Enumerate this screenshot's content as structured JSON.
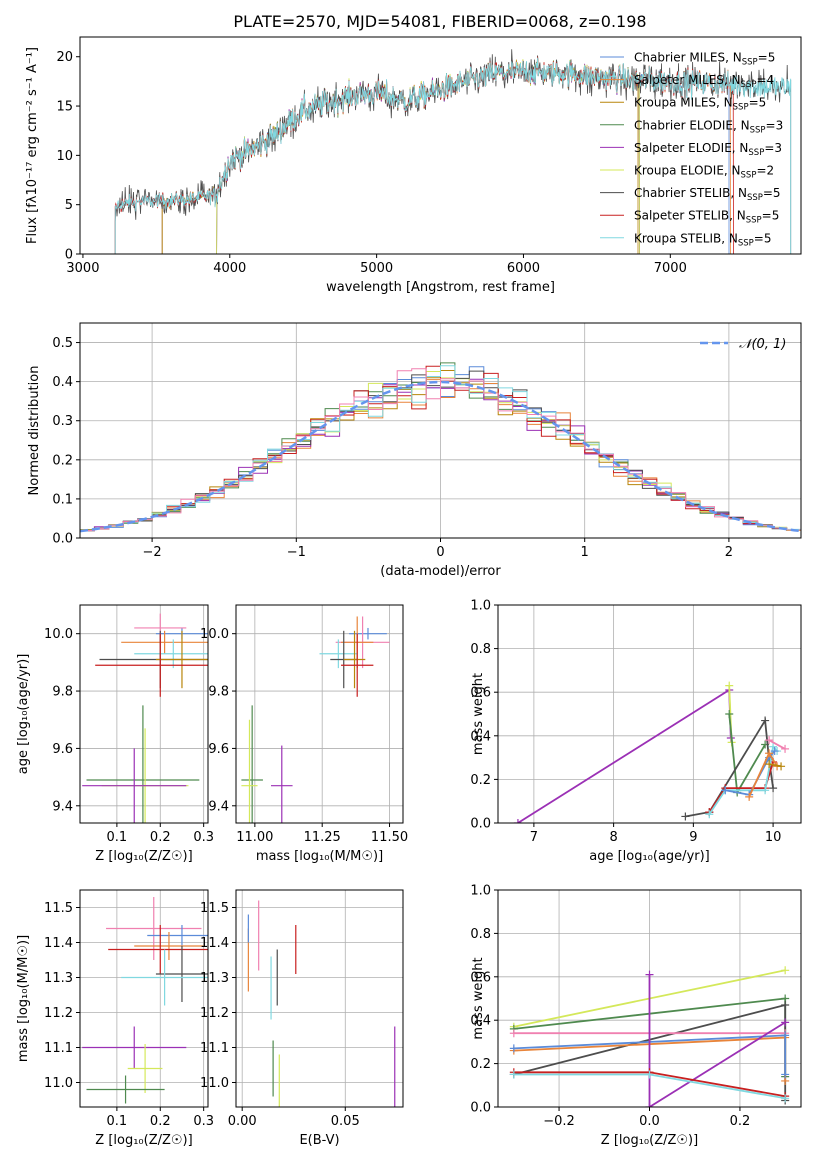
{
  "suptitle": "PLATE=2570, MJD=54081, FIBERID=0068, z=0.198",
  "colors": {
    "Chabrier MILES": "#5b8bd9",
    "Salpeter MILES": "#e8843a",
    "Kroupa MILES": "#b8860b",
    "Chabrier ELODIE": "#4f8a4f",
    "Salpeter ELODIE": "#9b30b5",
    "Kroupa ELODIE": "#d4e85a",
    "Chabrier STELIB": "#4d4d4d",
    "Salpeter STELIB": "#c82020",
    "Kroupa STELIB": "#80d8e0",
    "MILES pink": "#f080b0",
    "gaussian": "#6495ed"
  },
  "chart_data": [
    {
      "id": "spectrum",
      "type": "line",
      "xlabel": "wavelength [Angstrom, rest frame]",
      "ylabel": "Flux [f$_\\lambda$10$^{-17}$ erg cm$^{-2}$ s$^{-1}$ A$^{-1}$]",
      "ylabel_display": "Flux [fλ10⁻¹⁷ erg cm⁻² s⁻¹ A⁻¹]",
      "xlim": [
        2980,
        7890
      ],
      "ylim": [
        0,
        22
      ],
      "xticks": [
        3000,
        4000,
        5000,
        6000,
        7000
      ],
      "yticks": [
        0,
        5,
        10,
        15,
        20
      ],
      "grid": false,
      "legend_position": "upper right",
      "legend": [
        {
          "name": "Chabrier MILES",
          "nssp": "5"
        },
        {
          "name": "Salpeter MILES",
          "nssp": "4"
        },
        {
          "name": "Kroupa MILES",
          "nssp": "5"
        },
        {
          "name": "Chabrier ELODIE",
          "nssp": "3"
        },
        {
          "name": "Salpeter ELODIE",
          "nssp": "3"
        },
        {
          "name": "Kroupa ELODIE",
          "nssp": "2"
        },
        {
          "name": "Chabrier STELIB",
          "nssp": "5"
        },
        {
          "name": "Salpeter STELIB",
          "nssp": "5"
        },
        {
          "name": "Kroupa STELIB",
          "nssp": "5"
        }
      ],
      "legend_suffix": ", N",
      "legend_sub": "SSP",
      "continuum": [
        [
          3220,
          4.8
        ],
        [
          3300,
          5.2
        ],
        [
          3500,
          5.4
        ],
        [
          3700,
          5.5
        ],
        [
          3900,
          6.0
        ],
        [
          4000,
          9.5
        ],
        [
          4200,
          11.0
        ],
        [
          4300,
          12.0
        ],
        [
          4500,
          14.5
        ],
        [
          4800,
          16.0
        ],
        [
          5000,
          16.3
        ],
        [
          5200,
          15.5
        ],
        [
          5500,
          17.0
        ],
        [
          5800,
          18.3
        ],
        [
          6000,
          18.5
        ],
        [
          6300,
          18.3
        ],
        [
          6600,
          17.8
        ],
        [
          7000,
          17.5
        ],
        [
          7400,
          17.2
        ],
        [
          7820,
          16.8
        ]
      ],
      "coverage": [
        {
          "series": "Chabrier MILES",
          "start": 3540,
          "end": 7400
        },
        {
          "series": "Salpeter MILES",
          "start": 3540,
          "end": 7410
        },
        {
          "series": "Kroupa MILES",
          "start": 3540,
          "end": 6780
        },
        {
          "series": "Chabrier ELODIE",
          "start": 3910,
          "end": 6790
        },
        {
          "series": "Salpeter ELODIE",
          "start": 3910,
          "end": 6790
        },
        {
          "series": "Kroupa ELODIE",
          "start": 3910,
          "end": 6790
        },
        {
          "series": "Chabrier STELIB",
          "start": 3220,
          "end": 7820
        },
        {
          "series": "Salpeter STELIB",
          "start": 3220,
          "end": 7430
        },
        {
          "series": "Kroupa STELIB",
          "start": 3220,
          "end": 7820
        }
      ]
    },
    {
      "id": "residuals",
      "type": "step-histogram",
      "xlabel": "(data-model)/error",
      "ylabel": "Normed distribution",
      "xlim": [
        -2.5,
        2.5
      ],
      "ylim": [
        0,
        0.55
      ],
      "xticks": [
        -2,
        -1,
        0,
        1,
        2
      ],
      "yticks": [
        0.0,
        0.1,
        0.2,
        0.3,
        0.4,
        0.5
      ],
      "grid": true,
      "bin_width": 0.1,
      "gaussian": {
        "label": "𝒩(0, 1)",
        "mean": 0,
        "sigma": 1
      },
      "legend_position": "upper right"
    },
    {
      "id": "age-vs-Z",
      "type": "errorbar",
      "xlabel": "Z [log₁₀(Z/Z☉)]",
      "ylabel": "age  [log₁₀(age/yr)]",
      "xlim": [
        0.015,
        0.31
      ],
      "ylim": [
        9.34,
        10.1
      ],
      "xticks": [
        0.1,
        0.2,
        0.3
      ],
      "yticks": [
        9.4,
        9.6,
        9.8,
        10.0
      ],
      "grid": true,
      "points": [
        {
          "series": "Chabrier MILES",
          "x": 0.25,
          "xerr": 0.06,
          "y": 10.0,
          "yerr": 0.02
        },
        {
          "series": "MILES pink",
          "x": 0.2,
          "xerr": 0.06,
          "y": 10.02,
          "yerr": 0.05
        },
        {
          "series": "Salpeter MILES",
          "x": 0.21,
          "xerr": 0.1,
          "y": 9.97,
          "yerr": 0.04
        },
        {
          "series": "Kroupa STELIB",
          "x": 0.23,
          "xerr": 0.09,
          "y": 9.93,
          "yerr": 0.05
        },
        {
          "series": "Chabrier STELIB",
          "x": 0.2,
          "xerr": 0.14,
          "y": 9.91,
          "yerr": 0.1
        },
        {
          "series": "Kroupa MILES",
          "x": 0.25,
          "xerr": 0.06,
          "y": 9.91,
          "yerr": 0.1
        },
        {
          "series": "Salpeter STELIB",
          "x": 0.2,
          "xerr": 0.15,
          "y": 9.89,
          "yerr": 0.11
        },
        {
          "series": "Chabrier ELODIE",
          "x": 0.16,
          "xerr": 0.13,
          "y": 9.49,
          "yerr": 0.26
        },
        {
          "series": "Kroupa ELODIE",
          "x": 0.165,
          "xerr": 0.1,
          "y": 9.47,
          "yerr": 0.2
        },
        {
          "series": "Salpeter ELODIE",
          "x": 0.14,
          "xerr": 0.12,
          "y": 9.47,
          "yerr": 0.13
        }
      ]
    },
    {
      "id": "age-vs-mass",
      "type": "errorbar",
      "xlabel": "mass [log₁₀(M/M☉)]",
      "ylabel": "",
      "xlim": [
        10.93,
        11.55
      ],
      "ylim": [
        9.34,
        10.1
      ],
      "xticks": [
        11.0,
        11.25,
        11.5
      ],
      "yticks": [
        9.4,
        9.6,
        9.8,
        10.0
      ],
      "grid": true,
      "points": [
        {
          "series": "Chabrier MILES",
          "x": 11.42,
          "xerr": 0.07,
          "y": 10.0,
          "yerr": 0.02
        },
        {
          "series": "MILES pink",
          "x": 11.4,
          "xerr": 0.1,
          "y": 9.97,
          "yerr": 0.09
        },
        {
          "series": "Salpeter MILES",
          "x": 11.38,
          "xerr": 0.06,
          "y": 9.97,
          "yerr": 0.09
        },
        {
          "series": "Kroupa STELIB",
          "x": 11.31,
          "xerr": 0.07,
          "y": 9.93,
          "yerr": 0.05
        },
        {
          "series": "Chabrier STELIB",
          "x": 11.33,
          "xerr": 0.05,
          "y": 9.91,
          "yerr": 0.1
        },
        {
          "series": "Kroupa MILES",
          "x": 11.37,
          "xerr": 0.04,
          "y": 9.91,
          "yerr": 0.1
        },
        {
          "series": "Salpeter STELIB",
          "x": 11.38,
          "xerr": 0.06,
          "y": 9.89,
          "yerr": 0.11
        },
        {
          "series": "Chabrier ELODIE",
          "x": 10.99,
          "xerr": 0.04,
          "y": 9.49,
          "yerr": 0.26
        },
        {
          "series": "Kroupa ELODIE",
          "x": 10.98,
          "xerr": 0.03,
          "y": 9.47,
          "yerr": 0.23
        },
        {
          "series": "Salpeter ELODIE",
          "x": 11.1,
          "xerr": 0.04,
          "y": 9.47,
          "yerr": 0.14
        }
      ]
    },
    {
      "id": "weight-vs-age",
      "type": "line",
      "xlabel": "age  [log₁₀(age/yr)]",
      "ylabel": "mass weight",
      "xlim": [
        6.55,
        10.35
      ],
      "ylim": [
        0,
        1
      ],
      "xticks": [
        7,
        8,
        9,
        10
      ],
      "yticks": [
        0.0,
        0.2,
        0.4,
        0.6,
        0.8,
        1.0
      ],
      "grid": true,
      "series": [
        {
          "name": "Salpeter ELODIE",
          "x": [
            6.8,
            9.45,
            9.47
          ],
          "y": [
            0.0,
            0.61,
            0.39
          ]
        },
        {
          "name": "Kroupa ELODIE",
          "x": [
            9.45,
            9.48
          ],
          "y": [
            0.63,
            0.37
          ]
        },
        {
          "name": "Chabrier ELODIE",
          "x": [
            9.45,
            9.55,
            9.9
          ],
          "y": [
            0.5,
            0.14,
            0.36
          ]
        },
        {
          "name": "Chabrier STELIB",
          "x": [
            8.9,
            9.2,
            9.9,
            9.95,
            10.0
          ],
          "y": [
            0.03,
            0.05,
            0.47,
            0.29,
            0.16
          ]
        },
        {
          "name": "Salpeter STELIB",
          "x": [
            9.2,
            9.4,
            9.9,
            10.0
          ],
          "y": [
            0.05,
            0.16,
            0.16,
            0.28
          ]
        },
        {
          "name": "Kroupa STELIB",
          "x": [
            9.2,
            9.4,
            9.9,
            10.0,
            10.05
          ],
          "y": [
            0.04,
            0.15,
            0.15,
            0.35,
            0.33
          ]
        },
        {
          "name": "Chabrier MILES",
          "x": [
            9.4,
            9.7,
            9.95,
            10.02
          ],
          "y": [
            0.15,
            0.13,
            0.3,
            0.33
          ]
        },
        {
          "name": "Salpeter MILES",
          "x": [
            9.7,
            9.95,
            10.05
          ],
          "y": [
            0.12,
            0.32,
            0.26
          ]
        },
        {
          "name": "MILES pink",
          "x": [
            9.95,
            10.15
          ],
          "y": [
            0.38,
            0.34
          ]
        },
        {
          "name": "Kroupa MILES",
          "x": [
            9.95,
            10.1
          ],
          "y": [
            0.27,
            0.26
          ]
        }
      ]
    },
    {
      "id": "mass-vs-Z",
      "type": "errorbar",
      "xlabel": "Z [log₁₀(Z/Z☉)]",
      "ylabel": "mass [log₁₀(M/M☉)]",
      "xlim": [
        0.015,
        0.31
      ],
      "ylim": [
        10.93,
        11.55
      ],
      "xticks": [
        0.1,
        0.2,
        0.3
      ],
      "yticks": [
        11.0,
        11.1,
        11.2,
        11.3,
        11.4,
        11.5
      ],
      "grid": true,
      "points": [
        {
          "series": "MILES pink",
          "x": 0.185,
          "xerr": 0.11,
          "y": 11.44,
          "yerr": 0.09
        },
        {
          "series": "Chabrier MILES",
          "x": 0.25,
          "xerr": 0.08,
          "y": 11.42,
          "yerr": 0.03
        },
        {
          "series": "Salpeter MILES",
          "x": 0.22,
          "xerr": 0.08,
          "y": 11.39,
          "yerr": 0.04
        },
        {
          "series": "Salpeter STELIB",
          "x": 0.2,
          "xerr": 0.12,
          "y": 11.38,
          "yerr": 0.07
        },
        {
          "series": "Chabrier STELIB",
          "x": 0.25,
          "xerr": 0.06,
          "y": 11.31,
          "yerr": 0.08
        },
        {
          "series": "Kroupa STELIB",
          "x": 0.21,
          "xerr": 0.1,
          "y": 11.3,
          "yerr": 0.08
        },
        {
          "series": "Salpeter ELODIE",
          "x": 0.14,
          "xerr": 0.12,
          "y": 11.1,
          "yerr": 0.06
        },
        {
          "series": "Kroupa ELODIE",
          "x": 0.165,
          "xerr": 0.04,
          "y": 11.04,
          "yerr": 0.07
        },
        {
          "series": "Chabrier ELODIE",
          "x": 0.12,
          "xerr": 0.09,
          "y": 10.98,
          "yerr": 0.04
        }
      ]
    },
    {
      "id": "mass-vs-ebv",
      "type": "errorbar",
      "xlabel": "E(B-V)",
      "ylabel": "",
      "xlim": [
        -0.003,
        0.078
      ],
      "ylim": [
        10.93,
        11.55
      ],
      "xticks": [
        0.0,
        0.05
      ],
      "yticks": [
        11.0,
        11.1,
        11.2,
        11.3,
        11.4,
        11.5
      ],
      "grid": true,
      "points": [
        {
          "series": "Salpeter MILES",
          "x": 0.003,
          "y": 11.35,
          "yerr": 0.09
        },
        {
          "series": "Chabrier MILES",
          "x": 0.003,
          "y": 11.44,
          "yerr": 0.04
        },
        {
          "series": "MILES pink",
          "x": 0.008,
          "y": 11.42,
          "yerr": 0.1
        },
        {
          "series": "Salpeter STELIB",
          "x": 0.026,
          "y": 11.38,
          "yerr": 0.07
        },
        {
          "series": "Chabrier STELIB",
          "x": 0.017,
          "y": 11.3,
          "yerr": 0.08
        },
        {
          "series": "Kroupa STELIB",
          "x": 0.014,
          "y": 11.27,
          "yerr": 0.09
        },
        {
          "series": "Salpeter ELODIE",
          "x": 0.074,
          "y": 11.04,
          "yerr": 0.12
        },
        {
          "series": "Chabrier ELODIE",
          "x": 0.015,
          "y": 11.04,
          "yerr": 0.08
        },
        {
          "series": "Kroupa ELODIE",
          "x": 0.018,
          "y": 11.0,
          "yerr": 0.08
        }
      ]
    },
    {
      "id": "weight-vs-Z",
      "type": "line",
      "xlabel": "Z [log₁₀(Z/Z☉)]",
      "ylabel": "mass weight",
      "xlim": [
        -0.335,
        0.335
      ],
      "ylim": [
        0,
        1
      ],
      "xticks": [
        -0.2,
        0.0,
        0.2
      ],
      "yticks": [
        0.0,
        0.2,
        0.4,
        0.6,
        0.8,
        1.0
      ],
      "grid": true,
      "series": [
        {
          "name": "Kroupa ELODIE",
          "x": [
            -0.3,
            0.3
          ],
          "y": [
            0.37,
            0.63
          ]
        },
        {
          "name": "Chabrier ELODIE",
          "x": [
            -0.3,
            0.3,
            0.3
          ],
          "y": [
            0.36,
            0.5,
            0.14
          ]
        },
        {
          "name": "Chabrier STELIB",
          "x": [
            -0.3,
            0.3,
            0.3
          ],
          "y": [
            0.15,
            0.47,
            0.03
          ]
        },
        {
          "name": "MILES pink",
          "x": [
            -0.3,
            0.3
          ],
          "y": [
            0.34,
            0.34
          ]
        },
        {
          "name": "Salpeter MILES",
          "x": [
            -0.3,
            0.3,
            0.3
          ],
          "y": [
            0.26,
            0.32,
            0.12
          ]
        },
        {
          "name": "Chabrier MILES",
          "x": [
            -0.3,
            0.3,
            0.3
          ],
          "y": [
            0.27,
            0.33,
            0.15
          ]
        },
        {
          "name": "Salpeter ELODIE",
          "x": [
            0.0,
            0.0,
            0.3
          ],
          "y": [
            0.61,
            0.0,
            0.39
          ]
        },
        {
          "name": "Salpeter STELIB",
          "x": [
            -0.3,
            0.0,
            0.3
          ],
          "y": [
            0.16,
            0.16,
            0.05
          ]
        },
        {
          "name": "Kroupa STELIB",
          "x": [
            -0.3,
            0.0,
            0.3
          ],
          "y": [
            0.15,
            0.15,
            0.04
          ]
        }
      ]
    }
  ]
}
